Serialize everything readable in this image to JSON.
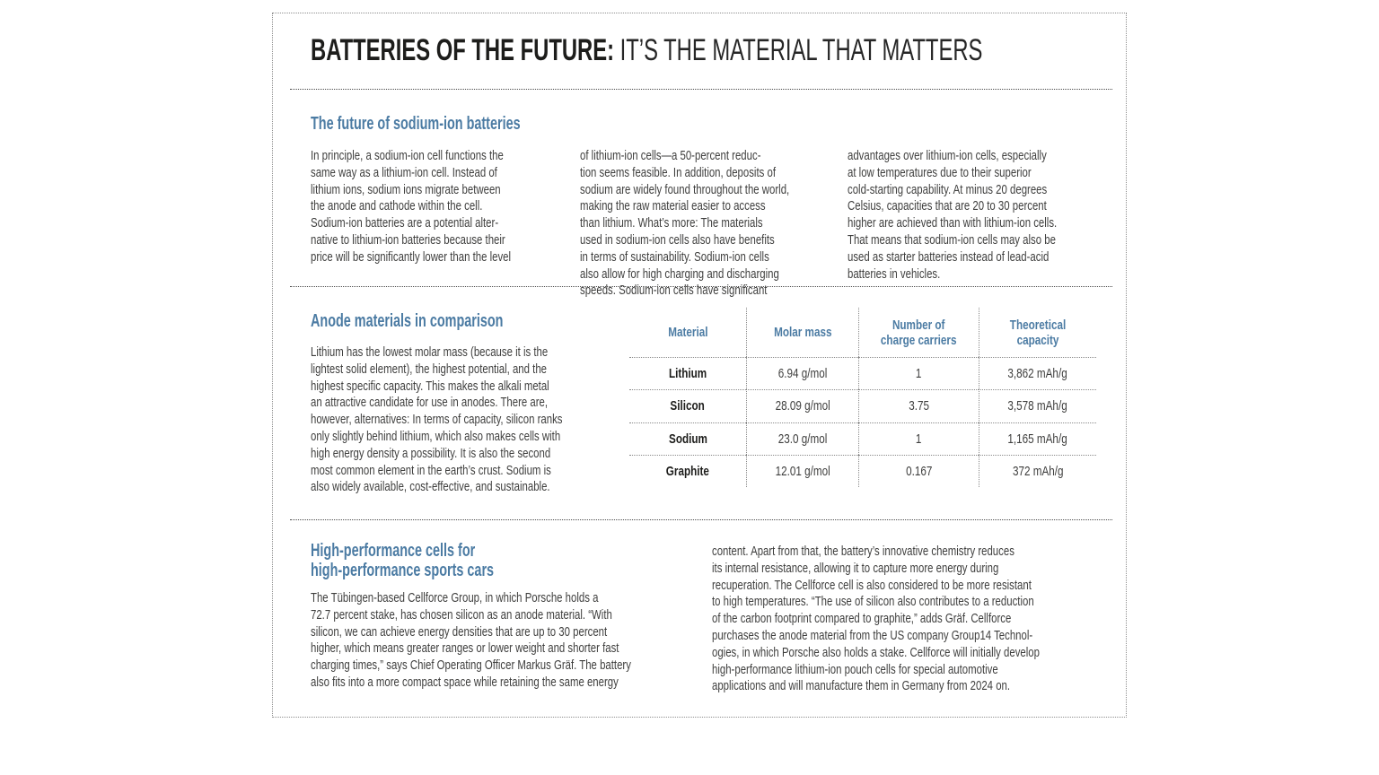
{
  "colors": {
    "accent_blue": "#4b7ba3",
    "title_text": "#1d1d1b",
    "body_text": "#3e3e3d"
  },
  "title": {
    "bold": "BATTERIES OF THE FUTURE:",
    "regular": " IT’S THE MATERIAL THAT MATTERS"
  },
  "section_sodium": {
    "heading": "The future of sodium-ion batteries",
    "col1": "In principle, a sodium-ion cell functions the\nsame way as a lithium-ion cell. Instead of\nlithium ions, sodium ions migrate between\nthe anode and cathode within the cell.\nSodium-ion batteries are a potential alter-\nnative to lithium-ion batteries because their\nprice will be significantly lower than the level",
    "col2": "of lithium-ion cells—a 50-percent reduc-\ntion seems feasible. In addition, deposits of\nsodium are widely found throughout the world,\nmaking the raw material easier to access\nthan lithium. What’s more: The materials\nused in sodium-ion cells also have benefits\nin terms of sustainability. Sodium-ion cells\nalso allow for high charging and discharging\nspeeds. Sodium-ion cells have significant",
    "col3": "advantages over lithium-ion cells, especially\nat low temperatures due to their superior\ncold-starting capability. At minus 20 degrees\nCelsius, capacities that are 20 to 30 percent\nhigher are achieved than with lithium-ion cells.\nThat means that sodium-ion cells may also be\nused as starter batteries instead of lead-acid\nbatteries in vehicles."
  },
  "section_anode": {
    "heading": "Anode materials in comparison",
    "body": "Lithium has the lowest molar mass (because it is the\nlightest solid element), the highest potential, and the\nhighest specific capacity. This makes the alkali metal\nan attractive candidate for use in anodes. There are,\nhowever, alternatives: In terms of capacity, silicon ranks\nonly slightly behind lithium, which also makes cells with\nhigh energy density a possibility. It is also the second\nmost common element in the earth’s crust. Sodium is\nalso widely available, cost-effective, and sustainable.",
    "table": {
      "headers": [
        "Material",
        "Molar mass",
        "Number of\ncharge carriers",
        "Theoretical\ncapacity"
      ],
      "rows": [
        {
          "material": "Lithium",
          "molar_mass": "6.94 g/mol",
          "charge_carriers": "1",
          "capacity": "3,862 mAh/g"
        },
        {
          "material": "Silicon",
          "molar_mass": "28.09 g/mol",
          "charge_carriers": "3.75",
          "capacity": "3,578 mAh/g"
        },
        {
          "material": "Sodium",
          "molar_mass": "23.0 g/mol",
          "charge_carriers": "1",
          "capacity": "1,165 mAh/g"
        },
        {
          "material": "Graphite",
          "molar_mass": "12.01 g/mol",
          "charge_carriers": "0.167",
          "capacity": "372 mAh/g"
        }
      ]
    }
  },
  "section_cellforce": {
    "heading": "High-performance cells for\nhigh-performance sports cars",
    "col1": "The Tübingen-based Cellforce Group, in which Porsche holds a\n72.7 percent stake, has chosen silicon as an anode material. “With\nsilicon, we can achieve energy densities that are up to 30 percent\nhigher, which means greater ranges or lower weight and shorter fast\ncharging times,” says Chief Operating Officer Markus Gräf. The battery\nalso fits into a more compact space while retaining the same energy",
    "col2": "content. Apart from that, the battery’s innovative chemistry reduces\nits internal resistance, allowing it to capture more energy during\nrecuperation. The Cellforce cell is also considered to be more resistant\nto high temperatures. “The use of silicon also contributes to a reduction\nof the carbon footprint compared to graphite,” adds Gräf. Cellforce\npurchases the anode material from the US company Group14 Technol-\nogies, in which Porsche also holds a stake. Cellforce will initially develop\nhigh-performance lithium-ion pouch cells for special automotive\napplications and will manufacture them in Germany from 2024 on."
  }
}
